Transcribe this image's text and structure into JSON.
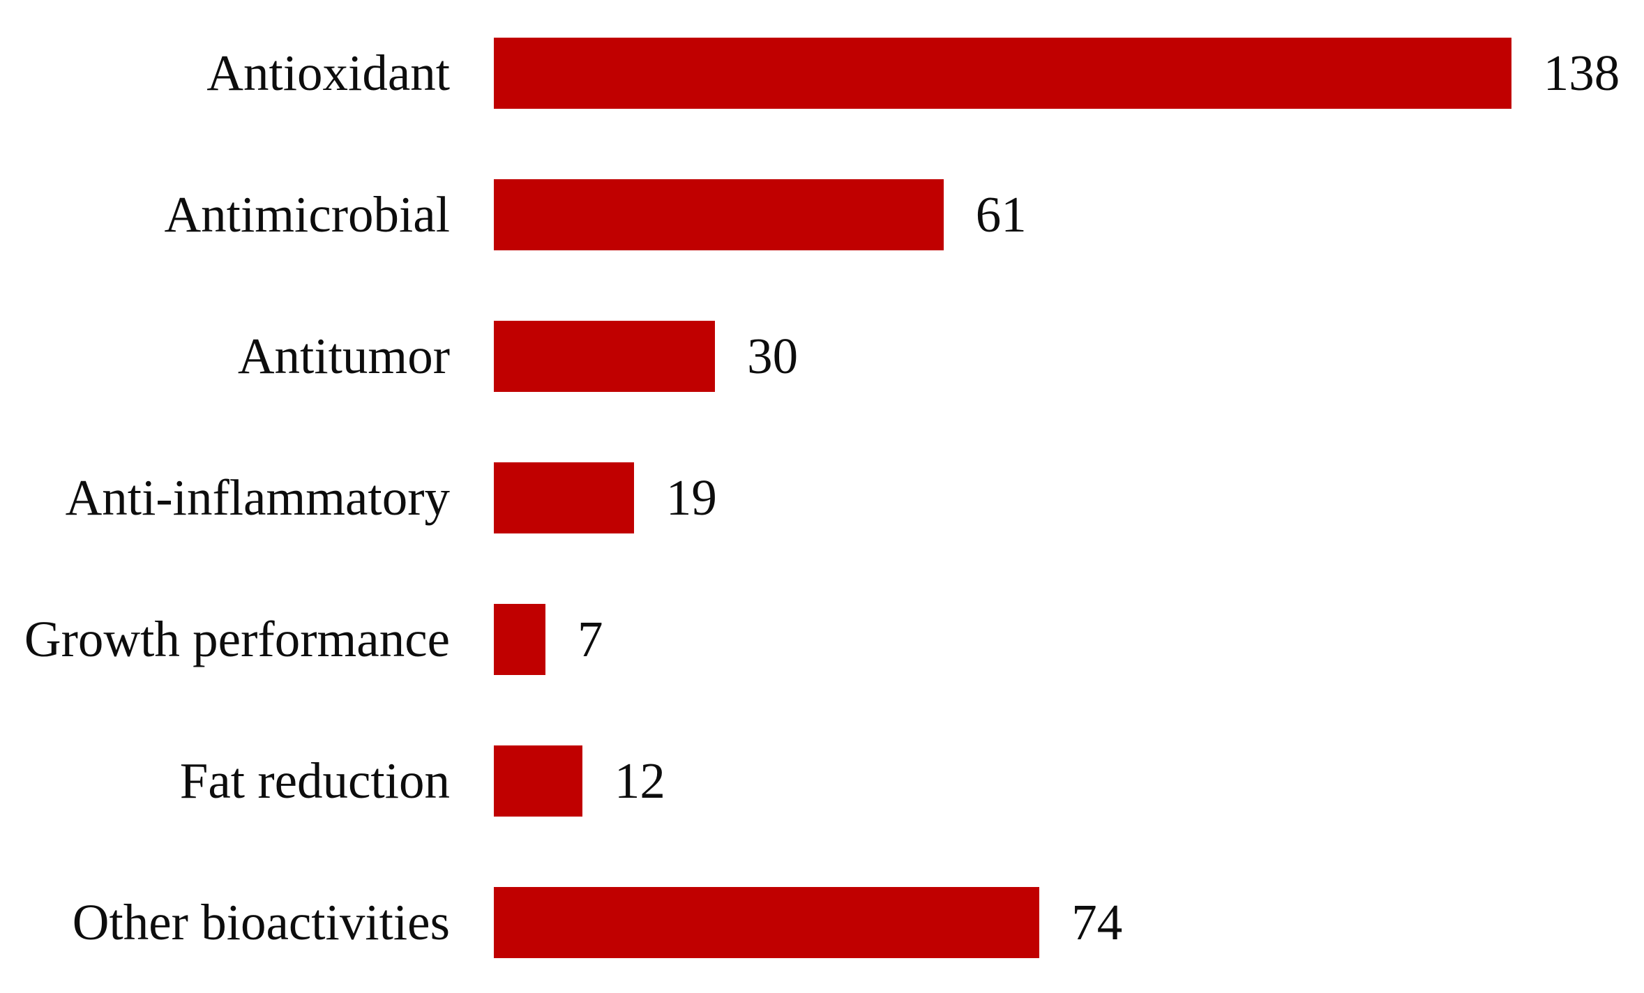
{
  "chart_data": {
    "type": "bar",
    "orientation": "horizontal",
    "title": "",
    "xlabel": "",
    "ylabel": "",
    "categories": [
      "Antioxidant",
      "Antimicrobial",
      "Antitumor",
      "Anti-inflammatory",
      "Growth performance",
      "Fat reduction",
      "Other bioactivities"
    ],
    "values": [
      138,
      61,
      30,
      19,
      7,
      12,
      74
    ],
    "value_labels_shown": true,
    "xlim": [
      0,
      156
    ],
    "grid": false,
    "axes_shown": false,
    "legend": null,
    "bar_color": "#c00000",
    "text_color": "#0d0d0d",
    "background_color": "#ffffff"
  }
}
